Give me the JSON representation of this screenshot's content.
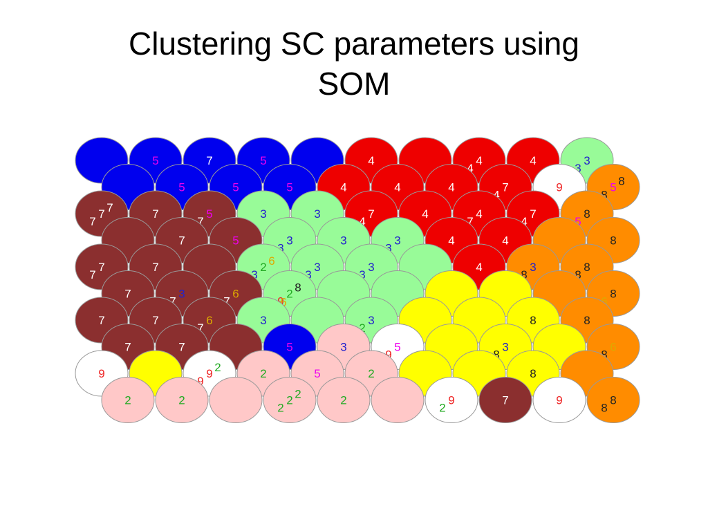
{
  "title": "Clustering SC parameters using\nSOM",
  "colors": {
    "blue": "#0000ee",
    "red": "#ee0000",
    "lightgreen": "#98fb98",
    "white": "#ffffff",
    "orange": "#ff8c00",
    "brown": "#8b2f2f",
    "yellow": "#ffff00",
    "pink": "#ffc8c8"
  },
  "label_colors": {
    "2": "#22aa22",
    "3": "#2222cc",
    "4": "#ffffff",
    "5": "#ee00ee",
    "6": "#ddaa00",
    "7": "#ffffff",
    "8": "#222222",
    "9": "#ee2222"
  },
  "grid": [
    [
      {
        "c": "blue",
        "labels": []
      },
      {
        "c": "blue",
        "labels": [
          "5"
        ]
      },
      {
        "c": "blue",
        "labels": [
          "7"
        ]
      },
      {
        "c": "blue",
        "labels": [
          "5"
        ]
      },
      {
        "c": "blue",
        "labels": []
      },
      {
        "c": "red",
        "labels": [
          "4"
        ]
      },
      {
        "c": "red",
        "labels": []
      },
      {
        "c": "red",
        "labels": [
          "4",
          "4"
        ]
      },
      {
        "c": "red",
        "labels": [
          "4"
        ]
      },
      {
        "c": "lightgreen",
        "labels": [
          "3",
          "3"
        ]
      }
    ],
    [
      {
        "c": "blue",
        "labels": []
      },
      {
        "c": "blue",
        "labels": [
          "5"
        ]
      },
      {
        "c": "blue",
        "labels": [
          "5"
        ]
      },
      {
        "c": "blue",
        "labels": [
          "5"
        ]
      },
      {
        "c": "red",
        "labels": [
          "4"
        ]
      },
      {
        "c": "red",
        "labels": [
          "4"
        ]
      },
      {
        "c": "red",
        "labels": [
          "4"
        ]
      },
      {
        "c": "red",
        "labels": [
          "7",
          "4"
        ]
      },
      {
        "c": "white",
        "labels": [
          "9"
        ]
      },
      {
        "c": "orange",
        "labels": [
          "5",
          "8",
          "8"
        ]
      }
    ],
    [
      {
        "c": "brown",
        "labels": [
          "7",
          "7",
          "7"
        ]
      },
      {
        "c": "brown",
        "labels": [
          "7"
        ]
      },
      {
        "c": "brown",
        "labels": [
          "5",
          "7"
        ]
      },
      {
        "c": "lightgreen",
        "labels": [
          "3"
        ]
      },
      {
        "c": "lightgreen",
        "labels": [
          "3"
        ]
      },
      {
        "c": "red",
        "labels": [
          "7",
          "4"
        ]
      },
      {
        "c": "red",
        "labels": [
          "4"
        ]
      },
      {
        "c": "red",
        "labels": [
          "4",
          "7"
        ]
      },
      {
        "c": "red",
        "labels": [
          "7",
          "4"
        ]
      },
      {
        "c": "orange",
        "labels": [
          "8",
          "5"
        ]
      }
    ],
    [
      {
        "c": "brown",
        "labels": []
      },
      {
        "c": "brown",
        "labels": [
          "7"
        ]
      },
      {
        "c": "brown",
        "labels": [
          "5"
        ]
      },
      {
        "c": "lightgreen",
        "labels": [
          "3",
          "3"
        ]
      },
      {
        "c": "lightgreen",
        "labels": [
          "3"
        ]
      },
      {
        "c": "lightgreen",
        "labels": [
          "3",
          "3"
        ]
      },
      {
        "c": "red",
        "labels": [
          "4"
        ]
      },
      {
        "c": "red",
        "labels": [
          "4"
        ]
      },
      {
        "c": "orange",
        "labels": []
      },
      {
        "c": "orange",
        "labels": [
          "8"
        ]
      }
    ],
    [
      {
        "c": "brown",
        "labels": [
          "7",
          "7"
        ]
      },
      {
        "c": "brown",
        "labels": [
          "7"
        ]
      },
      {
        "c": "brown",
        "labels": []
      },
      {
        "c": "lightgreen",
        "labels": [
          "2",
          "3",
          "6"
        ]
      },
      {
        "c": "lightgreen",
        "labels": [
          "3",
          "3"
        ]
      },
      {
        "c": "lightgreen",
        "labels": [
          "3",
          "3"
        ]
      },
      {
        "c": "lightgreen",
        "labels": []
      },
      {
        "c": "red",
        "labels": [
          "4"
        ]
      },
      {
        "c": "orange",
        "labels": [
          "3",
          "8"
        ]
      },
      {
        "c": "orange",
        "labels": [
          "8",
          "8"
        ]
      }
    ],
    [
      {
        "c": "brown",
        "labels": [
          "7"
        ]
      },
      {
        "c": "brown",
        "labels": [
          "3",
          "7"
        ]
      },
      {
        "c": "brown",
        "labels": [
          "6",
          "7"
        ]
      },
      {
        "c": "lightgreen",
        "labels": [
          "2",
          "9",
          "8",
          "6"
        ]
      },
      {
        "c": "lightgreen",
        "labels": []
      },
      {
        "c": "lightgreen",
        "labels": []
      },
      {
        "c": "yellow",
        "labels": []
      },
      {
        "c": "yellow",
        "labels": []
      },
      {
        "c": "orange",
        "labels": []
      },
      {
        "c": "orange",
        "labels": [
          "8",
          "6"
        ]
      }
    ],
    [
      {
        "c": "brown",
        "labels": [
          "7"
        ]
      },
      {
        "c": "brown",
        "labels": [
          "7"
        ]
      },
      {
        "c": "brown",
        "labels": [
          "6",
          "7"
        ]
      },
      {
        "c": "lightgreen",
        "labels": [
          "3"
        ]
      },
      {
        "c": "lightgreen",
        "labels": []
      },
      {
        "c": "lightgreen",
        "labels": [
          "3",
          "2"
        ]
      },
      {
        "c": "yellow",
        "labels": []
      },
      {
        "c": "yellow",
        "labels": []
      },
      {
        "c": "yellow",
        "labels": [
          "8"
        ]
      },
      {
        "c": "orange",
        "labels": [
          "8"
        ]
      }
    ],
    [
      {
        "c": "brown",
        "labels": [
          "7"
        ]
      },
      {
        "c": "brown",
        "labels": [
          "7"
        ]
      },
      {
        "c": "brown",
        "labels": []
      },
      {
        "c": "blue",
        "labels": [
          "5"
        ]
      },
      {
        "c": "pink",
        "labels": [
          "3"
        ]
      },
      {
        "c": "white",
        "labels": [
          "5",
          "9"
        ]
      },
      {
        "c": "yellow",
        "labels": []
      },
      {
        "c": "yellow",
        "labels": [
          "3",
          "8"
        ]
      },
      {
        "c": "yellow",
        "labels": []
      },
      {
        "c": "orange",
        "labels": [
          "6",
          "8"
        ]
      }
    ],
    [
      {
        "c": "white",
        "labels": [
          "9"
        ]
      },
      {
        "c": "yellow",
        "labels": []
      },
      {
        "c": "white",
        "labels": [
          "9",
          "9",
          "2"
        ]
      },
      {
        "c": "pink",
        "labels": [
          "2"
        ]
      },
      {
        "c": "pink",
        "labels": [
          "5"
        ]
      },
      {
        "c": "pink",
        "labels": [
          "2"
        ]
      },
      {
        "c": "yellow",
        "labels": []
      },
      {
        "c": "yellow",
        "labels": []
      },
      {
        "c": "yellow",
        "labels": [
          "8"
        ]
      },
      {
        "c": "orange",
        "labels": []
      }
    ],
    [
      {
        "c": "pink",
        "labels": [
          "2"
        ]
      },
      {
        "c": "pink",
        "labels": [
          "2"
        ]
      },
      {
        "c": "pink",
        "labels": []
      },
      {
        "c": "pink",
        "labels": [
          "2",
          "2",
          "2"
        ]
      },
      {
        "c": "pink",
        "labels": [
          "2"
        ]
      },
      {
        "c": "pink",
        "labels": []
      },
      {
        "c": "white",
        "labels": [
          "9",
          "2"
        ]
      },
      {
        "c": "brown",
        "labels": [
          "7"
        ]
      },
      {
        "c": "white",
        "labels": [
          "9"
        ]
      },
      {
        "c": "orange",
        "labels": [
          "8",
          "8"
        ]
      }
    ]
  ]
}
